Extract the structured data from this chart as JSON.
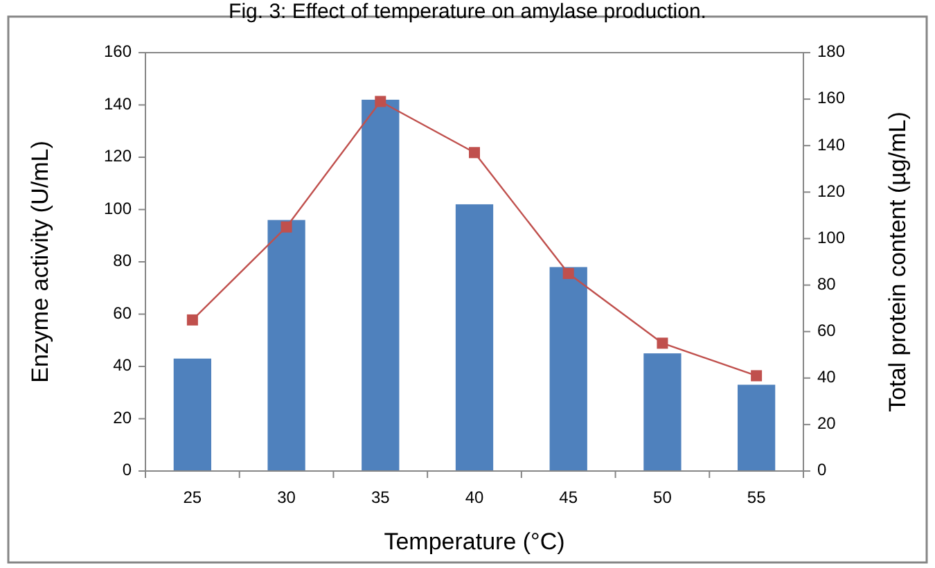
{
  "chart_data": {
    "type": "bar",
    "title": "Fig. 3: Effect of temperature on amylase production.",
    "xlabel": "Temperature (°C)",
    "ylabel": "Enzyme activity (U/mL)",
    "y2label": "Total protein content (µg/mL)",
    "categories": [
      "25",
      "30",
      "35",
      "40",
      "45",
      "50",
      "55"
    ],
    "series": [
      {
        "color": "#4f81bd",
        "values": [
          43,
          96,
          142,
          102,
          78,
          45,
          33
        ]
      },
      {
        "type": "line",
        "axis": "y2",
        "color": "#c0504d",
        "marker": "square",
        "values": [
          65,
          105,
          159,
          137,
          85,
          55,
          41
        ]
      }
    ],
    "ylim": [
      0,
      160
    ],
    "yticks": [
      0,
      20,
      40,
      60,
      80,
      100,
      120,
      140,
      160
    ],
    "y2lim": [
      0,
      180
    ],
    "y2ticks": [
      0,
      20,
      40,
      60,
      80,
      100,
      120,
      140,
      160,
      180
    ],
    "grid": false
  }
}
